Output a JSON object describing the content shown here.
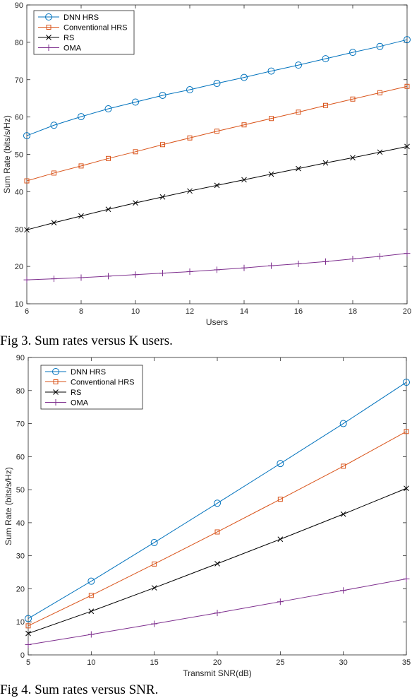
{
  "captions": {
    "fig3": "Fig 3.  Sum rates versus K users.",
    "fig4": "Fig 4.  Sum rates versus SNR."
  },
  "colors": {
    "dnn": "#0072BD",
    "conventional": "#D95319",
    "rs": "#000000",
    "oma": "#7E2F8E"
  },
  "chart_data": [
    {
      "type": "line",
      "title": "",
      "xlabel": "Users",
      "ylabel": "Sum Rate (bits/s/Hz)",
      "xlim": [
        6,
        20
      ],
      "ylim": [
        10,
        90
      ],
      "xticks": [
        6,
        8,
        10,
        12,
        14,
        16,
        18,
        20
      ],
      "yticks": [
        10,
        20,
        30,
        40,
        50,
        60,
        70,
        80,
        90
      ],
      "grid": false,
      "legend_position": "top-left",
      "x": [
        6,
        7,
        8,
        9,
        10,
        11,
        12,
        13,
        14,
        15,
        16,
        17,
        18,
        19,
        20
      ],
      "series": [
        {
          "name": "DNN HRS",
          "marker": "circle",
          "color": "#0072BD",
          "values": [
            55.0,
            57.8,
            60.1,
            62.2,
            64.0,
            65.8,
            67.3,
            69.0,
            70.6,
            72.3,
            73.9,
            75.6,
            77.3,
            78.9,
            80.7
          ]
        },
        {
          "name": "Conventional HRS",
          "marker": "square",
          "color": "#D95319",
          "values": [
            42.9,
            45.0,
            46.9,
            48.9,
            50.7,
            52.6,
            54.4,
            56.2,
            57.9,
            59.6,
            61.3,
            63.1,
            64.8,
            66.5,
            68.2
          ]
        },
        {
          "name": "RS",
          "marker": "x",
          "color": "#000000",
          "values": [
            29.8,
            31.7,
            33.5,
            35.3,
            37.0,
            38.6,
            40.2,
            41.7,
            43.2,
            44.7,
            46.2,
            47.7,
            49.1,
            50.6,
            52.1
          ]
        },
        {
          "name": "OMA",
          "marker": "plus",
          "color": "#7E2F8E",
          "values": [
            16.4,
            16.7,
            17.0,
            17.4,
            17.8,
            18.2,
            18.6,
            19.1,
            19.6,
            20.2,
            20.7,
            21.3,
            22.0,
            22.7,
            23.5
          ]
        }
      ]
    },
    {
      "type": "line",
      "title": "",
      "xlabel": "Transmit SNR(dB)",
      "ylabel": "Sum Rate (bits/s/Hz)",
      "xlim": [
        5,
        35
      ],
      "ylim": [
        0,
        90
      ],
      "xticks": [
        5,
        10,
        15,
        20,
        25,
        30,
        35
      ],
      "yticks": [
        0,
        10,
        20,
        30,
        40,
        50,
        60,
        70,
        80,
        90
      ],
      "grid": false,
      "legend_position": "top-left",
      "x": [
        5,
        10,
        15,
        20,
        25,
        30,
        35
      ],
      "series": [
        {
          "name": "DNN HRS",
          "marker": "circle",
          "color": "#0072BD",
          "values": [
            11.0,
            22.3,
            34.0,
            45.9,
            57.9,
            70.0,
            82.5
          ]
        },
        {
          "name": "Conventional HRS",
          "marker": "square",
          "color": "#D95319",
          "values": [
            8.8,
            18.0,
            27.5,
            37.2,
            47.1,
            57.1,
            67.6
          ]
        },
        {
          "name": "RS",
          "marker": "x",
          "color": "#000000",
          "values": [
            6.5,
            13.2,
            20.3,
            27.6,
            35.0,
            42.6,
            50.4
          ]
        },
        {
          "name": "OMA",
          "marker": "plus",
          "color": "#7E2F8E",
          "values": [
            3.1,
            6.2,
            9.4,
            12.7,
            16.1,
            19.5,
            23.0
          ]
        }
      ]
    }
  ]
}
